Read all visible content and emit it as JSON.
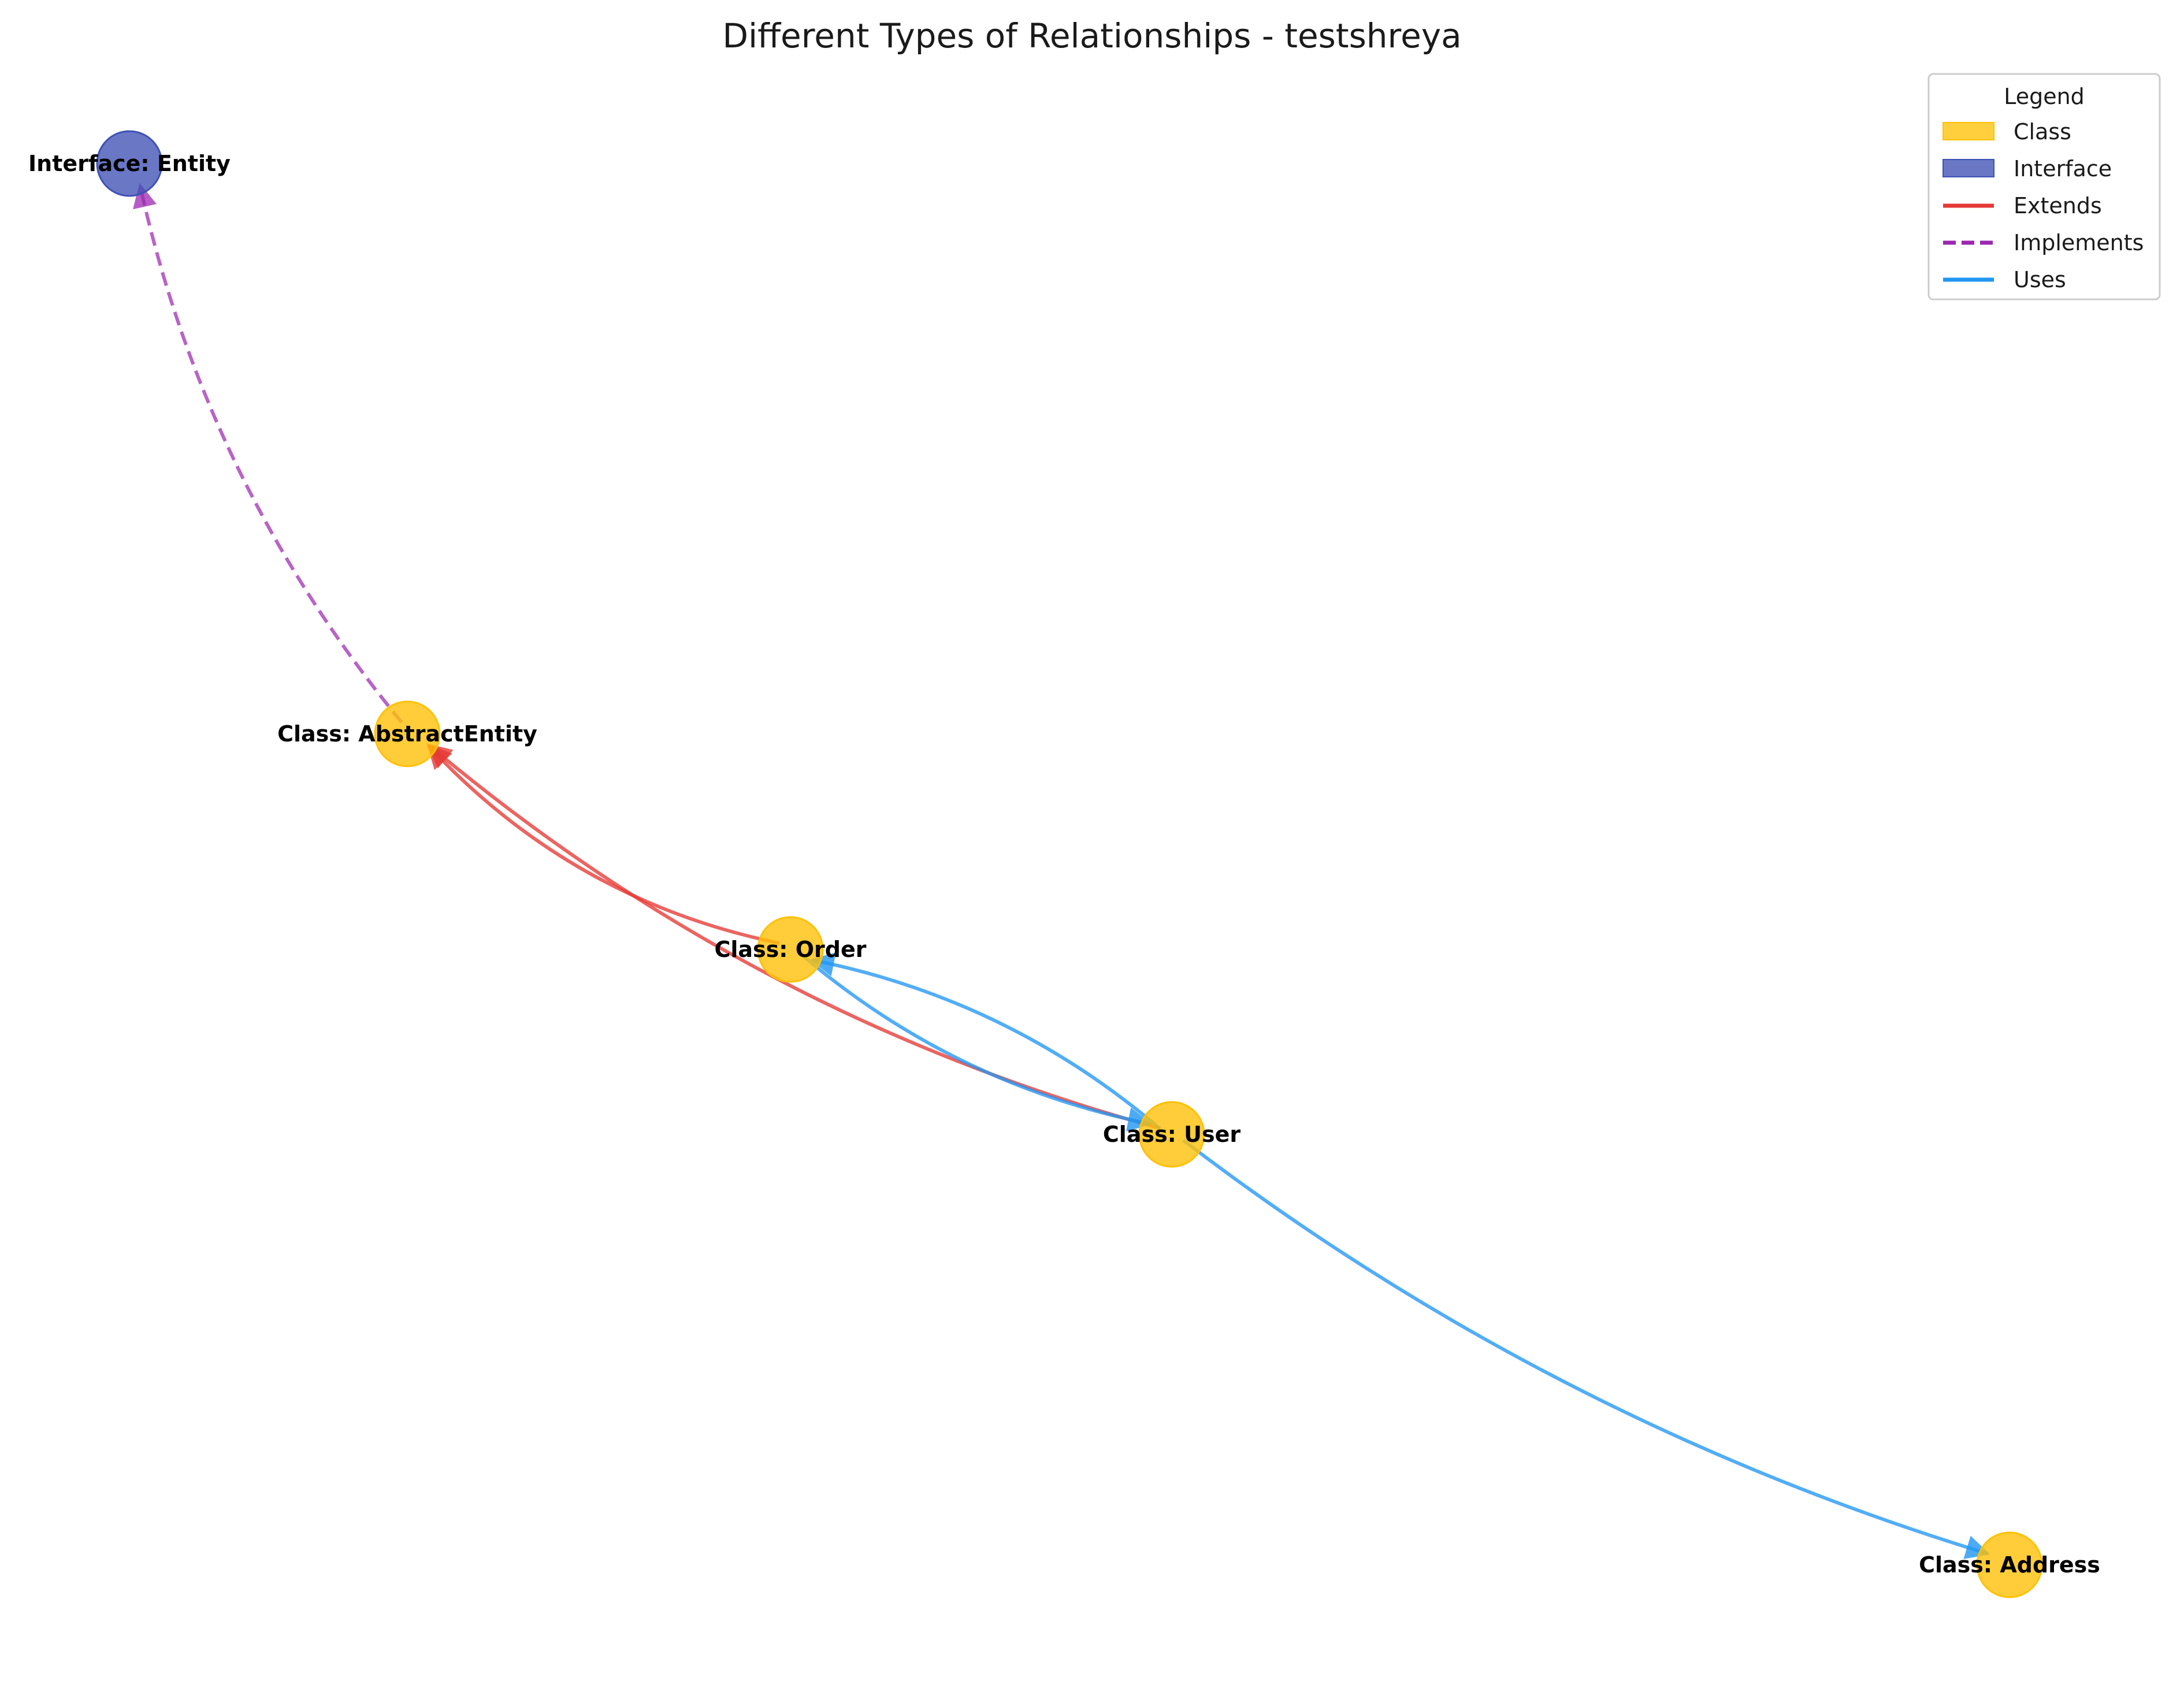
{
  "title": "Different Types of Relationships - testshreya",
  "colors": {
    "class_fill": "#FFC107",
    "interface_fill": "#3F51B5",
    "extends": "#E53935",
    "implements": "#9C27B0",
    "uses": "#2196F3"
  },
  "nodes": [
    {
      "id": "entity",
      "kind": "interface",
      "label": "Interface: Entity"
    },
    {
      "id": "abstract",
      "kind": "class",
      "label": "Class: AbstractEntity"
    },
    {
      "id": "order",
      "kind": "class",
      "label": "Class: Order"
    },
    {
      "id": "user",
      "kind": "class",
      "label": "Class: User"
    },
    {
      "id": "address",
      "kind": "class",
      "label": "Class: Address"
    }
  ],
  "edges": [
    {
      "from": "abstract",
      "to": "entity",
      "type": "implements"
    },
    {
      "from": "order",
      "to": "abstract",
      "type": "extends"
    },
    {
      "from": "user",
      "to": "abstract",
      "type": "extends"
    },
    {
      "from": "user",
      "to": "order",
      "type": "uses"
    },
    {
      "from": "order",
      "to": "user",
      "type": "uses"
    },
    {
      "from": "user",
      "to": "address",
      "type": "uses"
    }
  ],
  "legend": {
    "title": "Legend",
    "items": [
      {
        "label": "Class",
        "kind": "patch",
        "color": "#FFC107"
      },
      {
        "label": "Interface",
        "kind": "patch",
        "color": "#3F51B5"
      },
      {
        "label": "Extends",
        "kind": "line",
        "color": "#E53935"
      },
      {
        "label": "Implements",
        "kind": "dashed",
        "color": "#9C27B0"
      },
      {
        "label": "Uses",
        "kind": "line",
        "color": "#2196F3"
      }
    ]
  }
}
